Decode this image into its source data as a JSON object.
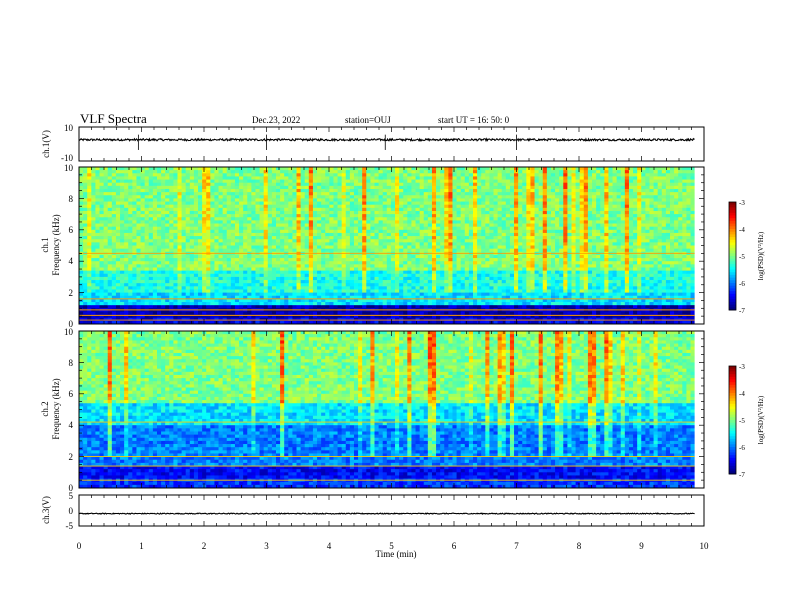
{
  "header": {
    "title": "VLF Spectra",
    "date": "Dec.23, 2022",
    "station": "station=OUJ",
    "start_ut": "start  UT =   16: 50: 0"
  },
  "chart_data": [
    {
      "type": "line",
      "panel": "ch1-waveform",
      "ylabel": "ch.1(V)",
      "ylim": [
        -10,
        10
      ],
      "yticks": [
        "10",
        "-10"
      ],
      "xlim": [
        0,
        10
      ],
      "series": [
        {
          "baseline": 2.5,
          "jitter": 0.6,
          "spikes_min": [
            0.95,
            3.0,
            4.9,
            7.0
          ]
        }
      ],
      "color": "#000000"
    },
    {
      "type": "heatmap",
      "panel": "ch1-spectrogram",
      "ylabel_top": "ch.1",
      "ylabel": "Frequency (kHz)",
      "ylim": [
        0,
        10
      ],
      "yticks": [
        "0",
        "2",
        "4",
        "6",
        "8",
        "10"
      ],
      "xlim": [
        0,
        10
      ],
      "data_end_min": 9.85,
      "colorbar": {
        "label": "log(PSD)(V²/Hz)",
        "ticks": [
          "-3",
          "-4",
          "-5",
          "-6",
          "-7"
        ],
        "range": [
          -7,
          -3
        ]
      },
      "bands": [
        {
          "from_khz": 0.0,
          "to_khz": 0.35,
          "level": -6.6
        },
        {
          "from_khz": 0.35,
          "to_khz": 1.2,
          "level": -6.8
        },
        {
          "from_khz": 1.2,
          "to_khz": 2.0,
          "level": -5.6
        },
        {
          "from_khz": 2.0,
          "to_khz": 3.5,
          "level": -5.4
        },
        {
          "from_khz": 3.5,
          "to_khz": 10.0,
          "level": -5.0
        }
      ],
      "tones_khz": [
        0.25,
        0.55,
        0.9,
        1.6,
        4.5
      ],
      "tone_level": -4.1
    },
    {
      "type": "heatmap",
      "panel": "ch2-spectrogram",
      "ylabel_top": "ch.2",
      "ylabel": "Frequency (kHz)",
      "ylim": [
        0,
        10
      ],
      "yticks": [
        "0",
        "2",
        "4",
        "6",
        "8",
        "10"
      ],
      "xlim": [
        0,
        10
      ],
      "data_end_min": 9.85,
      "colorbar": {
        "label": "log(PSD)(V²/Hz)",
        "ticks": [
          "-3",
          "-4",
          "-5",
          "-6",
          "-7"
        ],
        "range": [
          -7,
          -3
        ]
      },
      "bands": [
        {
          "from_khz": 0.0,
          "to_khz": 0.6,
          "level": -6.3
        },
        {
          "from_khz": 0.6,
          "to_khz": 1.4,
          "level": -6.5
        },
        {
          "from_khz": 1.4,
          "to_khz": 4.0,
          "level": -6.0
        },
        {
          "from_khz": 4.0,
          "to_khz": 5.5,
          "level": -5.6
        },
        {
          "from_khz": 5.5,
          "to_khz": 10.0,
          "level": -5.0
        }
      ],
      "tones_khz": [
        0.5,
        1.4,
        2.0,
        4.2
      ],
      "tone_level": -4.3
    },
    {
      "type": "line",
      "panel": "ch3-waveform",
      "ylabel": "ch.3(V)",
      "ylim": [
        -5,
        5
      ],
      "yticks": [
        "5",
        "0",
        "-5"
      ],
      "xlim": [
        0,
        10
      ],
      "xlabel": "Time (min)",
      "xticks": [
        "0",
        "1",
        "2",
        "3",
        "4",
        "5",
        "6",
        "7",
        "8",
        "9",
        "10"
      ],
      "series": [
        {
          "baseline": -1.0,
          "jitter": 0.15
        }
      ],
      "color": "#000000"
    }
  ]
}
